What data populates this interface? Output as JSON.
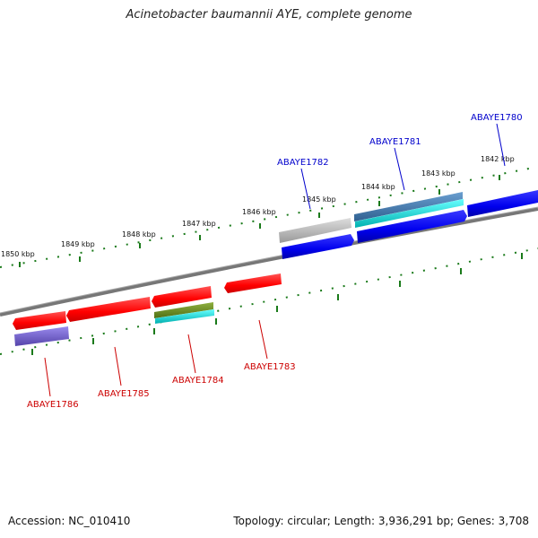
{
  "title": "Acinetobacter baumannii AYE, complete genome",
  "footer": {
    "accession": "Accession: NC_010410",
    "summary": "Topology: circular; Length: 3,936,291 bp; Genes: 3,708"
  },
  "ruler": {
    "ticks": [
      "1850 kbp",
      "1849 kbp",
      "1848 kbp",
      "1847 kbp",
      "1846 kbp",
      "1845 kbp",
      "1844 kbp",
      "1843 kbp",
      "1842 kbp"
    ]
  },
  "genes_top": [
    {
      "label": "ABAYE1782",
      "color": "#0000cc"
    },
    {
      "label": "ABAYE1781",
      "color": "#0000cc"
    },
    {
      "label": "ABAYE1780",
      "color": "#0000cc"
    }
  ],
  "genes_bottom": [
    {
      "label": "ABAYE1786",
      "color": "#cc0000"
    },
    {
      "label": "ABAYE1785",
      "color": "#cc0000"
    },
    {
      "label": "ABAYE1784",
      "color": "#cc0000"
    },
    {
      "label": "ABAYE1783",
      "color": "#cc0000"
    }
  ],
  "colors": {
    "backbone": "#888888",
    "ruler": "#1a7a1a",
    "forward_gene": "#0000ee",
    "reverse_gene": "#ff0000",
    "cog_cyan": "#00cccc",
    "cog_steel": "#4a7fb0",
    "cog_grey": "#bbbbbb",
    "cog_olive": "#6b8e23",
    "cog_purple": "#7766cc"
  }
}
